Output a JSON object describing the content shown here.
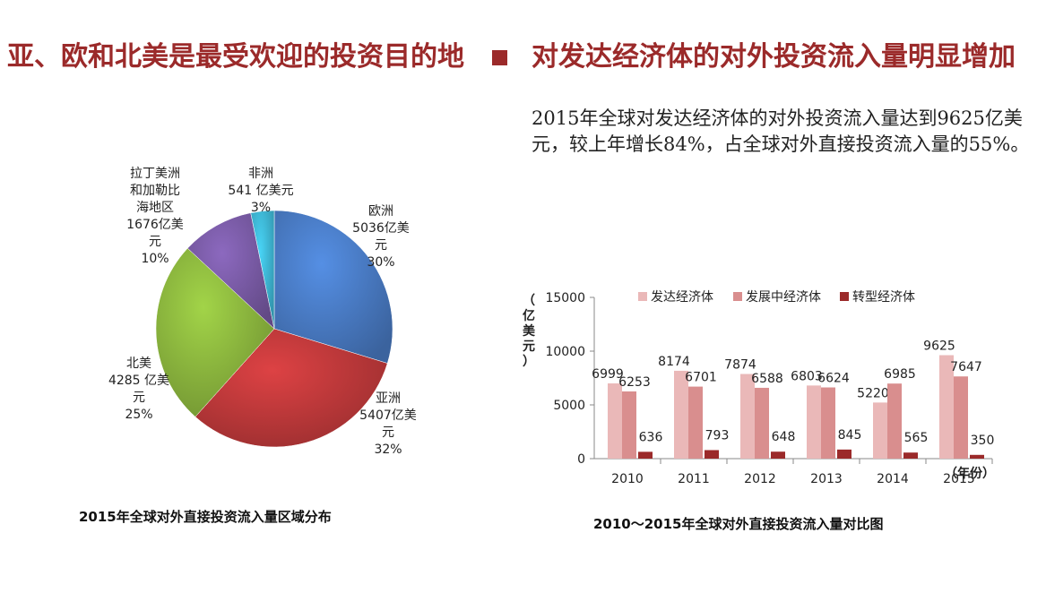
{
  "header": {
    "left_title": "亚、欧和北美是最受欢迎的投资目的地",
    "right_title": "对发达经济体的对外投资流入量明显增加"
  },
  "intro_text": "2015年全球对发达经济体的对外投资流入量达到9625亿美元，较上年增长84%，占全球对外直接投资流入量的55%。",
  "colors": {
    "header": "#9b2a2a",
    "pie": [
      "#4a7cc6",
      "#c0393b",
      "#8db83f",
      "#7a5ba6",
      "#3fb8d6"
    ],
    "bars": [
      "#eab8b8",
      "#d98e8e",
      "#9b2a2a"
    ]
  },
  "chart_data": [
    {
      "type": "pie",
      "title": "2015年全球对外直接投资流入量区域分布",
      "slices": [
        {
          "lines": [
            "欧洲",
            "5036亿美",
            "元",
            "30%"
          ],
          "value": 5036,
          "percent": 30
        },
        {
          "lines": [
            "亚洲",
            "5407亿美",
            "元",
            "32%"
          ],
          "value": 5407,
          "percent": 32
        },
        {
          "lines": [
            "北美",
            "4285 亿美",
            "元",
            "25%"
          ],
          "value": 4285,
          "percent": 25
        },
        {
          "lines": [
            "拉丁美洲",
            "和加勒比",
            "海地区",
            "1676亿美",
            "元",
            "10%"
          ],
          "value": 1676,
          "percent": 10
        },
        {
          "lines": [
            "非洲",
            "541 亿美元",
            "3%"
          ],
          "value": 541,
          "percent": 3
        }
      ]
    },
    {
      "type": "bar",
      "title": "2010～2015年全球对外直接投资流入量对比图",
      "ylabel": "（亿美元）",
      "xlabel": "（年份）",
      "ylim": [
        0,
        15000
      ],
      "yticks": [
        "0",
        "5000",
        "10000",
        "15000"
      ],
      "categories": [
        "2010",
        "2011",
        "2012",
        "2013",
        "2014",
        "2015"
      ],
      "series": [
        {
          "name": "发达经济体",
          "values": [
            6999,
            8174,
            7874,
            6803,
            5220,
            9625
          ]
        },
        {
          "name": "发展中经济体",
          "values": [
            6253,
            6701,
            6588,
            6624,
            6985,
            7647
          ]
        },
        {
          "name": "转型经济体",
          "values": [
            636,
            793,
            648,
            845,
            565,
            350
          ]
        }
      ]
    }
  ]
}
